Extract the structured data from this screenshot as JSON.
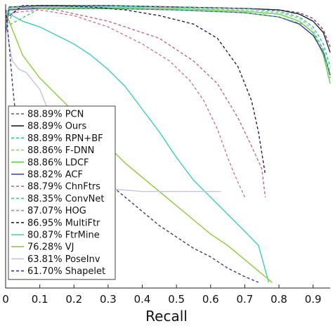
{
  "chart_data": {
    "type": "line",
    "xlabel": "Recall",
    "ylabel": "",
    "title": "",
    "xlim": [
      0,
      0.95
    ],
    "ylim": [
      0,
      1
    ],
    "x_ticks": [
      "0",
      "0.1",
      "0.2",
      "0.3",
      "0.4",
      "0.5",
      "0.6",
      "0.7",
      "0.8",
      "0.9"
    ],
    "grid": false,
    "legend_position": "bottom-left",
    "series": [
      {
        "name": "88.89% PCN",
        "color": "#7b4a8a",
        "dash": "dash",
        "x": [
          0.0,
          0.01,
          0.1,
          0.3,
          0.5,
          0.7,
          0.8,
          0.86,
          0.9,
          0.93,
          0.95
        ],
        "y": [
          0.93,
          0.99,
          0.995,
          0.995,
          0.99,
          0.985,
          0.98,
          0.97,
          0.95,
          0.91,
          0.85
        ]
      },
      {
        "name": "88.89% Ours",
        "color": "#222222",
        "dash": "solid",
        "x": [
          0.0,
          0.01,
          0.1,
          0.3,
          0.5,
          0.7,
          0.8,
          0.86,
          0.9,
          0.93,
          0.95
        ],
        "y": [
          0.93,
          0.99,
          0.995,
          0.995,
          0.99,
          0.985,
          0.98,
          0.965,
          0.94,
          0.9,
          0.83
        ]
      },
      {
        "name": "88.89% RPN+BF",
        "color": "#2fb8c8",
        "dash": "dash",
        "x": [
          0.0,
          0.01,
          0.1,
          0.3,
          0.5,
          0.7,
          0.8,
          0.86,
          0.9,
          0.93,
          0.95
        ],
        "y": [
          0.93,
          0.99,
          0.995,
          0.995,
          0.99,
          0.985,
          0.975,
          0.955,
          0.92,
          0.86,
          0.78
        ]
      },
      {
        "name": "88.86% F-DNN",
        "color": "#8ed37a",
        "dash": "dash",
        "x": [
          0.0,
          0.01,
          0.1,
          0.3,
          0.5,
          0.7,
          0.8,
          0.86,
          0.9,
          0.93,
          0.95
        ],
        "y": [
          0.92,
          0.985,
          0.99,
          0.99,
          0.985,
          0.98,
          0.97,
          0.95,
          0.91,
          0.84,
          0.76
        ]
      },
      {
        "name": "88.86% LDCF",
        "color": "#6ccf55",
        "dash": "solid",
        "x": [
          0.0,
          0.01,
          0.1,
          0.3,
          0.5,
          0.7,
          0.8,
          0.86,
          0.9,
          0.93,
          0.95
        ],
        "y": [
          0.92,
          0.985,
          0.99,
          0.99,
          0.985,
          0.975,
          0.965,
          0.94,
          0.9,
          0.82,
          0.72
        ]
      },
      {
        "name": "88.82% ACF",
        "color": "#3a3f9e",
        "dash": "solid",
        "x": [
          0.0,
          0.01,
          0.1,
          0.3,
          0.5,
          0.7,
          0.8,
          0.86,
          0.9,
          0.93,
          0.95
        ],
        "y": [
          0.9,
          0.98,
          0.985,
          0.985,
          0.98,
          0.97,
          0.955,
          0.93,
          0.89,
          0.83,
          0.75
        ]
      },
      {
        "name": "88.79% ChnFtrs",
        "color": "#c06a8a",
        "dash": "dash",
        "x": [
          0.0,
          0.05,
          0.15,
          0.3,
          0.45,
          0.55,
          0.62,
          0.68,
          0.72,
          0.75,
          0.76
        ],
        "y": [
          0.95,
          0.99,
          0.98,
          0.94,
          0.88,
          0.8,
          0.72,
          0.6,
          0.5,
          0.42,
          0.32
        ]
      },
      {
        "name": "88.35% ConvNet",
        "color": "#4fc46a",
        "dash": "dash",
        "x": [
          0.0,
          0.1,
          0.3,
          0.5,
          0.7,
          0.8,
          0.87,
          0.9,
          0.93,
          0.95
        ],
        "y": [
          0.92,
          0.985,
          0.985,
          0.98,
          0.97,
          0.955,
          0.93,
          0.9,
          0.84,
          0.74
        ]
      },
      {
        "name": "87.07% HOG",
        "color": "#d07a8e",
        "dash": "dash",
        "x": [
          0.0,
          0.02,
          0.1,
          0.2,
          0.3,
          0.4,
          0.48,
          0.54,
          0.58,
          0.62,
          0.65,
          0.67,
          0.7
        ],
        "y": [
          0.9,
          0.97,
          0.98,
          0.96,
          0.92,
          0.86,
          0.8,
          0.73,
          0.66,
          0.56,
          0.46,
          0.4,
          0.32
        ]
      },
      {
        "name": "86.95% MultiFtr",
        "color": "#222255",
        "dash": "dash",
        "x": [
          0.0,
          0.05,
          0.15,
          0.25,
          0.35,
          0.45,
          0.55,
          0.62,
          0.68,
          0.72,
          0.74,
          0.76
        ],
        "y": [
          0.95,
          0.995,
          0.995,
          0.99,
          0.98,
          0.96,
          0.93,
          0.88,
          0.78,
          0.66,
          0.55,
          0.4
        ]
      },
      {
        "name": "80.87% FtrMine",
        "color": "#40cfb5",
        "dash": "solid",
        "x": [
          0.0,
          0.02,
          0.05,
          0.1,
          0.15,
          0.2,
          0.25,
          0.3,
          0.35,
          0.4,
          0.45,
          0.5,
          0.55,
          0.6,
          0.65,
          0.7,
          0.74,
          0.77
        ],
        "y": [
          0.98,
          0.96,
          0.94,
          0.92,
          0.89,
          0.86,
          0.82,
          0.77,
          0.71,
          0.63,
          0.55,
          0.46,
          0.38,
          0.32,
          0.26,
          0.2,
          0.15,
          0.02
        ]
      },
      {
        "name": "76.28% VJ",
        "color": "#8ecb3a",
        "dash": "solid",
        "x": [
          0.0,
          0.01,
          0.03,
          0.05,
          0.1,
          0.15,
          0.2,
          0.25,
          0.3,
          0.35,
          0.4,
          0.45,
          0.5,
          0.55,
          0.6,
          0.65,
          0.7,
          0.74,
          0.78
        ],
        "y": [
          0.98,
          0.94,
          0.88,
          0.82,
          0.74,
          0.68,
          0.62,
          0.56,
          0.5,
          0.44,
          0.39,
          0.34,
          0.29,
          0.24,
          0.19,
          0.15,
          0.1,
          0.06,
          0.02
        ]
      },
      {
        "name": "63.81% PoseInv",
        "color": "#c4c4e0",
        "dash": "solid",
        "x": [
          0.0,
          0.01,
          0.02,
          0.04,
          0.06,
          0.08,
          0.1,
          0.12,
          0.14,
          0.16,
          0.18,
          0.2,
          0.25,
          0.3,
          0.4,
          0.5,
          0.6,
          0.63
        ],
        "y": [
          0.96,
          0.86,
          0.8,
          0.77,
          0.76,
          0.73,
          0.7,
          0.64,
          0.56,
          0.48,
          0.42,
          0.38,
          0.36,
          0.35,
          0.34,
          0.34,
          0.34,
          0.34
        ]
      },
      {
        "name": "61.70% Shapelet",
        "color": "#3a3a8a",
        "dash": "dash",
        "x": [
          0.0,
          0.01,
          0.02,
          0.03,
          0.05,
          0.07,
          0.1,
          0.15,
          0.2,
          0.25,
          0.3,
          0.35,
          0.4,
          0.45,
          0.5,
          0.55,
          0.6,
          0.65,
          0.7,
          0.74
        ],
        "y": [
          0.98,
          0.86,
          0.72,
          0.6,
          0.56,
          0.58,
          0.56,
          0.52,
          0.46,
          0.42,
          0.37,
          0.32,
          0.27,
          0.22,
          0.18,
          0.14,
          0.11,
          0.07,
          0.04,
          0.02
        ]
      }
    ]
  }
}
